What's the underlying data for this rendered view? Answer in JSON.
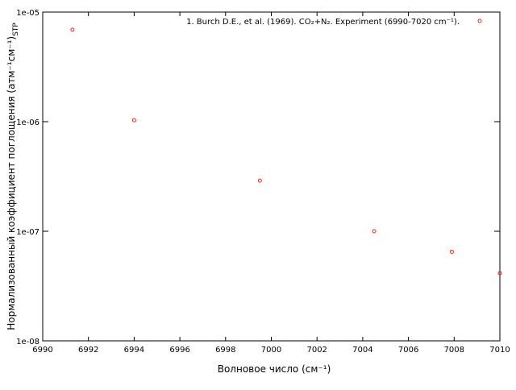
{
  "chart_data": {
    "type": "scatter",
    "xlabel": "Волновое число (см⁻¹)",
    "ylabel": "Нормализованный коэффициент поглощения (атм⁻¹см⁻¹)",
    "ylabel_sub": "STP",
    "series": [
      {
        "name": "1. Burch D.E., et al. (1969). CO₂+N₂. Experiment (6990-7020 cm⁻¹).",
        "color": "#e8271f",
        "x": [
          6991.3,
          6994.0,
          6999.5,
          7004.5,
          7007.9,
          7010.0
        ],
        "values": [
          6.9e-06,
          1.03e-06,
          2.9e-07,
          1e-07,
          6.5e-08,
          4.15e-08
        ]
      }
    ],
    "xlim": [
      6990,
      7010
    ],
    "xticks": [
      6990,
      6992,
      6994,
      6996,
      6998,
      7000,
      7002,
      7004,
      7006,
      7008,
      7010
    ],
    "ylim": [
      1e-08,
      1e-05
    ],
    "yticks": [
      {
        "value": 1e-08,
        "label": "1e-08"
      },
      {
        "value": 1e-07,
        "label": "1e-07"
      },
      {
        "value": 1e-06,
        "label": "1e-06"
      },
      {
        "value": 1e-05,
        "label": "1e-05"
      }
    ],
    "log_y": true,
    "legend": "top-right"
  }
}
